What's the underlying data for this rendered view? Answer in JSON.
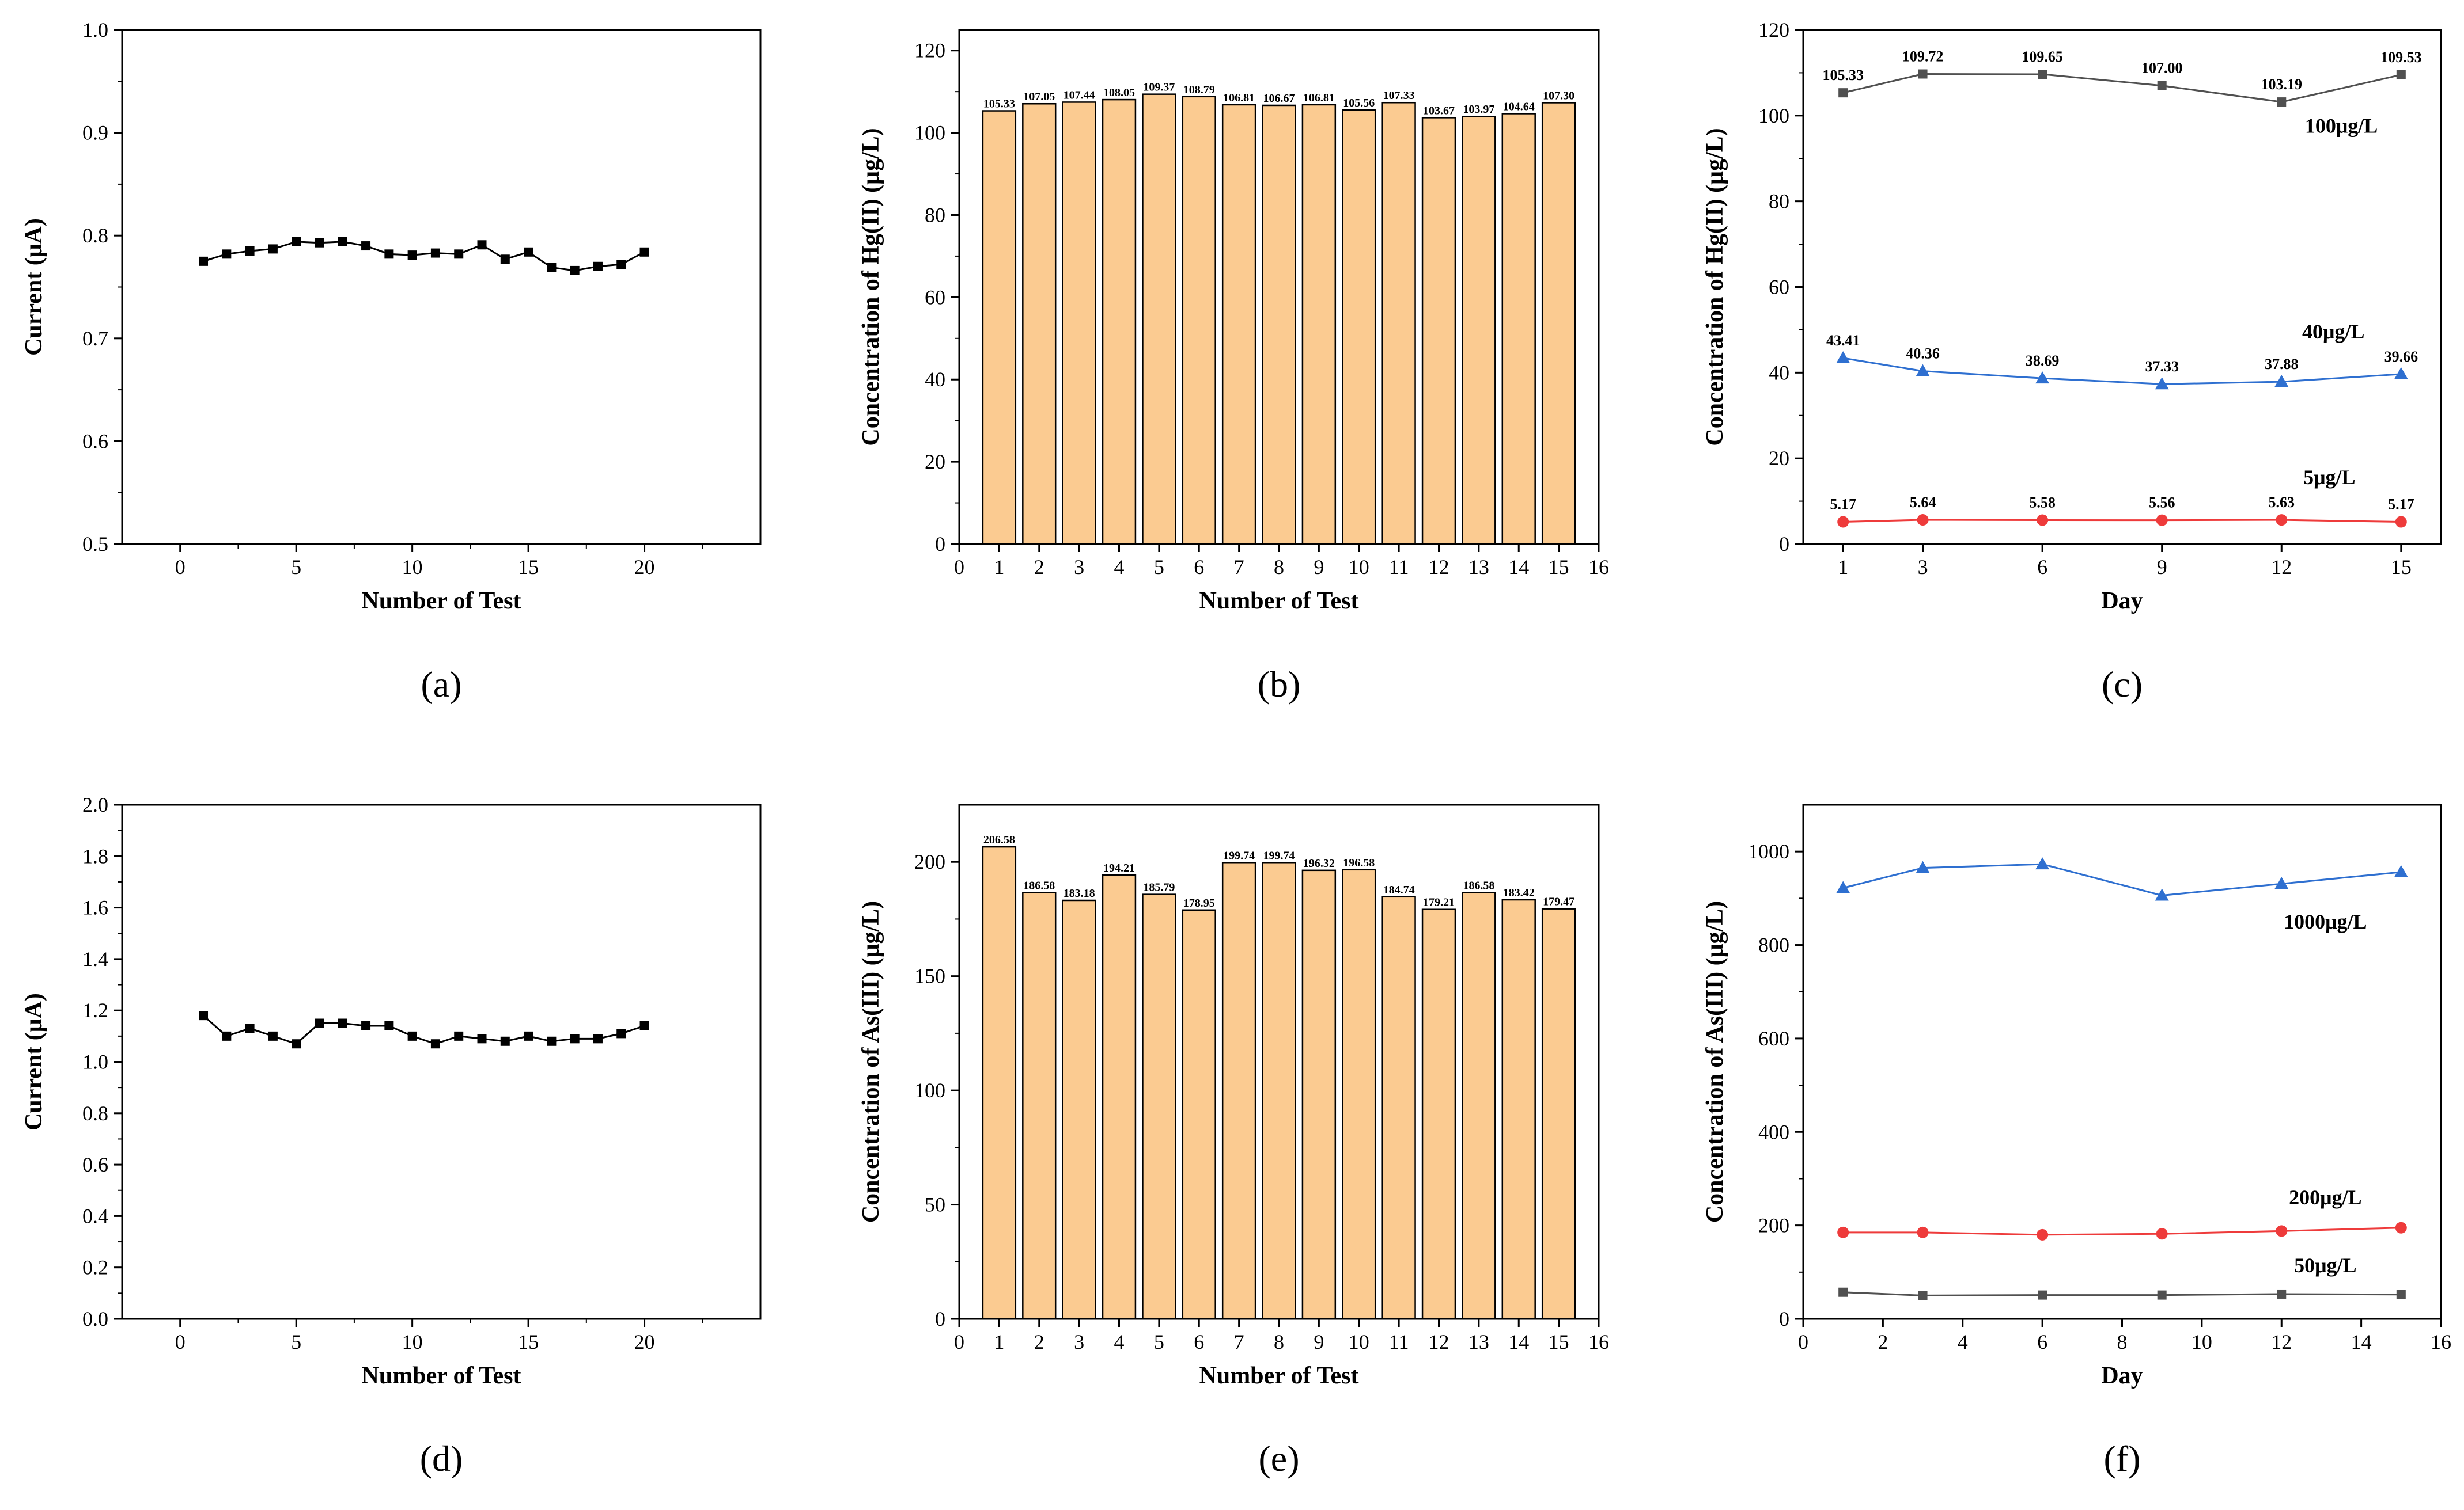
{
  "chart_data": [
    {
      "id": "a",
      "panel_label": "(a)",
      "type": "line",
      "xlabel": "Number of Test",
      "ylabel": "Current (μA)",
      "xlim": [
        -2.5,
        25
      ],
      "ylim": [
        0.5,
        1.0
      ],
      "xticks": [
        0,
        5,
        10,
        15,
        20
      ],
      "yticks": [
        0.5,
        0.6,
        0.7,
        0.8,
        0.9,
        1.0
      ],
      "ytick_decimals": 1,
      "grid": false,
      "series": [
        {
          "name": "Current",
          "color": "#000000",
          "marker": "square",
          "x": [
            1,
            2,
            3,
            4,
            5,
            6,
            7,
            8,
            9,
            10,
            11,
            12,
            13,
            14,
            15,
            16,
            17,
            18,
            19,
            20
          ],
          "values": [
            0.775,
            0.782,
            0.785,
            0.787,
            0.794,
            0.793,
            0.794,
            0.79,
            0.782,
            0.781,
            0.783,
            0.782,
            0.791,
            0.777,
            0.784,
            0.769,
            0.766,
            0.77,
            0.772,
            0.784
          ]
        }
      ]
    },
    {
      "id": "b",
      "panel_label": "(b)",
      "type": "bar",
      "xlabel": "Number of Test",
      "ylabel": "Concentration of Hg(II) (μg/L)",
      "xlim": [
        0,
        16
      ],
      "ylim": [
        0,
        125
      ],
      "xticks": [
        0,
        1,
        2,
        3,
        4,
        5,
        6,
        7,
        8,
        9,
        10,
        11,
        12,
        13,
        14,
        15,
        16
      ],
      "yticks": [
        0,
        20,
        40,
        60,
        80,
        100,
        120
      ],
      "ytick_decimals": 0,
      "grid": false,
      "bar_color": "#FBCB91",
      "categories": [
        1,
        2,
        3,
        4,
        5,
        6,
        7,
        8,
        9,
        10,
        11,
        12,
        13,
        14,
        15
      ],
      "values": [
        105.33,
        107.05,
        107.44,
        108.05,
        109.37,
        108.79,
        106.81,
        106.67,
        106.81,
        105.56,
        107.33,
        103.67,
        103.97,
        104.64,
        107.3
      ],
      "labels": [
        "105.33",
        "107.05",
        "107.44",
        "108.05",
        "109.37",
        "108.79",
        "106.81",
        "106.67",
        "106.81",
        "105.56",
        "107.33",
        "103.67",
        "103.97",
        "104.64",
        "107.30"
      ]
    },
    {
      "id": "c",
      "panel_label": "(c)",
      "type": "line",
      "xlabel": "Day",
      "ylabel": "Concentration of Hg(II) (μg/L)",
      "xlim": [
        0,
        16
      ],
      "ylim": [
        0,
        120
      ],
      "xticks": [
        1,
        3,
        6,
        9,
        12,
        15
      ],
      "yticks": [
        0,
        20,
        40,
        60,
        80,
        100,
        120
      ],
      "ytick_decimals": 0,
      "grid": false,
      "series": [
        {
          "name": "100μg/L",
          "color": "#505050",
          "marker": "square",
          "x": [
            1,
            3,
            6,
            9,
            12,
            15
          ],
          "values": [
            105.33,
            109.72,
            109.65,
            107.0,
            103.19,
            109.53
          ],
          "labels": [
            "105.33",
            "109.72",
            "109.65",
            "107.00",
            "103.19",
            "109.53"
          ],
          "name_at": [
            13.5,
            96
          ]
        },
        {
          "name": "40μg/L",
          "color": "#2E6FD0",
          "marker": "triangle",
          "x": [
            1,
            3,
            6,
            9,
            12,
            15
          ],
          "values": [
            43.41,
            40.36,
            38.69,
            37.33,
            37.88,
            39.66
          ],
          "labels": [
            "43.41",
            "40.36",
            "38.69",
            "37.33",
            "37.88",
            "39.66"
          ],
          "name_at": [
            13.3,
            48
          ]
        },
        {
          "name": "5μg/L",
          "color": "#EE3B3B",
          "marker": "circle",
          "x": [
            1,
            3,
            6,
            9,
            12,
            15
          ],
          "values": [
            5.17,
            5.64,
            5.58,
            5.56,
            5.63,
            5.17
          ],
          "labels": [
            "5.17",
            "5.64",
            "5.58",
            "5.56",
            "5.63",
            "5.17"
          ],
          "name_at": [
            13.2,
            14
          ]
        }
      ]
    },
    {
      "id": "d",
      "panel_label": "(d)",
      "type": "line",
      "xlabel": "Number of Test",
      "ylabel": "Current (μA)",
      "xlim": [
        -2.5,
        25
      ],
      "ylim": [
        0.0,
        2.0
      ],
      "xticks": [
        0,
        5,
        10,
        15,
        20
      ],
      "yticks": [
        0.0,
        0.2,
        0.4,
        0.6,
        0.8,
        1.0,
        1.2,
        1.4,
        1.6,
        1.8,
        2.0
      ],
      "ytick_decimals": 1,
      "grid": false,
      "series": [
        {
          "name": "Current",
          "color": "#000000",
          "marker": "square",
          "x": [
            1,
            2,
            3,
            4,
            5,
            6,
            7,
            8,
            9,
            10,
            11,
            12,
            13,
            14,
            15,
            16,
            17,
            18,
            19,
            20
          ],
          "values": [
            1.18,
            1.1,
            1.13,
            1.1,
            1.07,
            1.15,
            1.15,
            1.14,
            1.14,
            1.1,
            1.07,
            1.1,
            1.09,
            1.08,
            1.1,
            1.08,
            1.09,
            1.09,
            1.11,
            1.14
          ]
        }
      ]
    },
    {
      "id": "e",
      "panel_label": "(e)",
      "type": "bar",
      "xlabel": "Number of Test",
      "ylabel": "Concentration of As(III) (μg/L)",
      "xlim": [
        0,
        16
      ],
      "ylim": [
        0,
        225
      ],
      "xticks": [
        0,
        1,
        2,
        3,
        4,
        5,
        6,
        7,
        8,
        9,
        10,
        11,
        12,
        13,
        14,
        15,
        16
      ],
      "yticks": [
        0,
        50,
        100,
        150,
        200
      ],
      "ytick_decimals": 0,
      "grid": false,
      "bar_color": "#FBCB91",
      "categories": [
        1,
        2,
        3,
        4,
        5,
        6,
        7,
        8,
        9,
        10,
        11,
        12,
        13,
        14,
        15
      ],
      "values": [
        206.58,
        186.58,
        183.18,
        194.21,
        185.79,
        178.95,
        199.74,
        199.74,
        196.32,
        196.58,
        184.74,
        179.21,
        186.58,
        183.42,
        179.47
      ],
      "labels": [
        "206.58",
        "186.58",
        "183.18",
        "194.21",
        "185.79",
        "178.95",
        "199.74",
        "199.74",
        "196.32",
        "196.58",
        "184.74",
        "179.21",
        "186.58",
        "183.42",
        "179.47"
      ]
    },
    {
      "id": "f",
      "panel_label": "(f)",
      "type": "line",
      "xlabel": "Day",
      "ylabel": "Concentration of As(III) (μg/L)",
      "xlim": [
        0,
        16
      ],
      "ylim": [
        0,
        1100
      ],
      "xticks": [
        0,
        2,
        4,
        6,
        8,
        10,
        12,
        14,
        16
      ],
      "yticks": [
        0,
        200,
        400,
        600,
        800,
        1000
      ],
      "ytick_decimals": 0,
      "grid": false,
      "series": [
        {
          "name": "1000μg/L",
          "color": "#2E6FD0",
          "marker": "triangle",
          "x": [
            1,
            3,
            6,
            9,
            12,
            15
          ],
          "values": [
            922,
            965,
            973,
            906,
            931,
            956
          ],
          "name_at": [
            13.1,
            835
          ]
        },
        {
          "name": "200μg/L",
          "color": "#EE3B3B",
          "marker": "circle",
          "x": [
            1,
            3,
            6,
            9,
            12,
            15
          ],
          "values": [
            185,
            185,
            180,
            182,
            188,
            195
          ],
          "name_at": [
            13.1,
            245
          ]
        },
        {
          "name": "50μg/L",
          "color": "#505050",
          "marker": "square",
          "x": [
            1,
            3,
            6,
            9,
            12,
            15
          ],
          "values": [
            57,
            50,
            51,
            51,
            53,
            52
          ],
          "name_at": [
            13.1,
            100
          ]
        }
      ]
    }
  ]
}
